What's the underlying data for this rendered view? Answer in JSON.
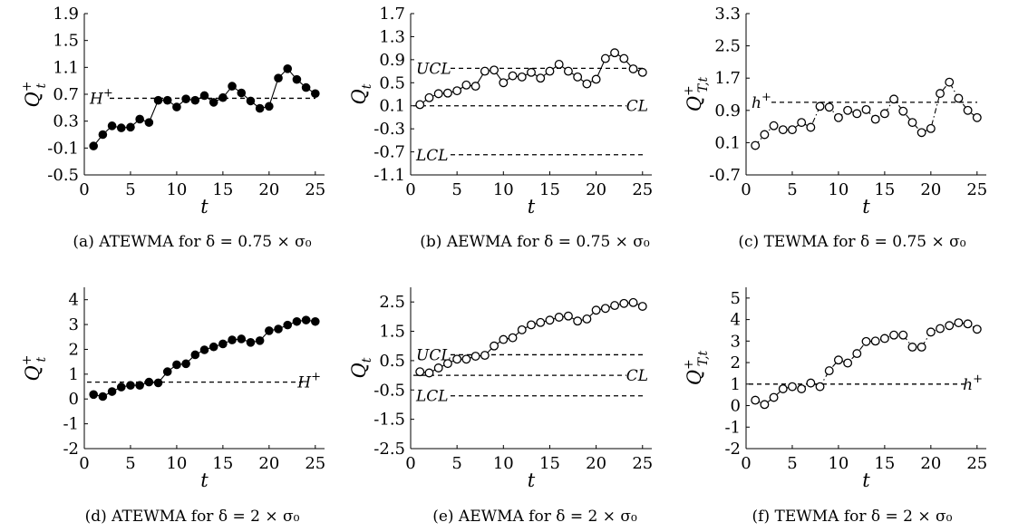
{
  "chart_data": [
    {
      "type": "line",
      "caption": "(a) ATEWMA for δ = 0.75 × σ₀",
      "xlabel": "t",
      "ylabel": "Q",
      "ylabel_sub": "t",
      "ylabel_sup": "+",
      "marker": "filled",
      "line_style": "solid",
      "xlim": [
        0,
        26
      ],
      "ylim": [
        -0.5,
        1.9
      ],
      "xticks": [
        0,
        5,
        10,
        15,
        20,
        25
      ],
      "yticks": [
        -0.5,
        -0.1,
        0.3,
        0.7,
        1.1,
        1.5,
        1.9
      ],
      "yticklabels": [
        "-0.5",
        "-0.1",
        "0.3",
        "0.7",
        "1.1",
        "1.5",
        "1.9"
      ],
      "x": [
        1,
        2,
        3,
        4,
        5,
        6,
        7,
        8,
        9,
        10,
        11,
        12,
        13,
        14,
        15,
        16,
        17,
        18,
        19,
        20,
        21,
        22,
        23,
        24,
        25
      ],
      "values": [
        -0.07,
        0.1,
        0.23,
        0.2,
        0.21,
        0.33,
        0.28,
        0.61,
        0.61,
        0.51,
        0.63,
        0.61,
        0.68,
        0.58,
        0.65,
        0.82,
        0.72,
        0.6,
        0.49,
        0.52,
        0.94,
        1.08,
        0.92,
        0.8,
        0.71
      ],
      "reference_lines": [
        {
          "label_base": "H",
          "label_sup": "+",
          "value": 0.64,
          "label_side": "left"
        }
      ]
    },
    {
      "type": "line",
      "caption": "(b) AEWMA for δ = 0.75 × σ₀",
      "xlabel": "t",
      "ylabel": "Q",
      "ylabel_sub": "t",
      "ylabel_sup": "",
      "marker": "open",
      "line_style": "solid",
      "xlim": [
        0,
        26
      ],
      "ylim": [
        -1.1,
        1.7
      ],
      "xticks": [
        0,
        5,
        10,
        15,
        20,
        25
      ],
      "yticks": [
        -1.1,
        -0.7,
        -0.3,
        0.1,
        0.5,
        0.9,
        1.3,
        1.7
      ],
      "yticklabels": [
        "-1.1",
        "-0.7",
        "-0.3",
        "0.1",
        "0.5",
        "0.9",
        "1.3",
        "1.7"
      ],
      "x": [
        1,
        2,
        3,
        4,
        5,
        6,
        7,
        8,
        9,
        10,
        11,
        12,
        13,
        14,
        15,
        16,
        17,
        18,
        19,
        20,
        21,
        22,
        23,
        24,
        25
      ],
      "values": [
        0.12,
        0.24,
        0.31,
        0.32,
        0.36,
        0.46,
        0.44,
        0.7,
        0.72,
        0.5,
        0.62,
        0.6,
        0.68,
        0.58,
        0.7,
        0.82,
        0.7,
        0.6,
        0.48,
        0.56,
        0.92,
        1.02,
        0.92,
        0.74,
        0.68
      ],
      "reference_lines": [
        {
          "label_base": "UCL",
          "label_sup": "",
          "value": 0.75,
          "label_side": "left"
        },
        {
          "label_base": "CL",
          "label_sup": "",
          "value": 0.1,
          "label_side": "right"
        },
        {
          "label_base": "LCL",
          "label_sup": "",
          "value": -0.75,
          "label_side": "left"
        }
      ]
    },
    {
      "type": "line",
      "caption": "(c) TEWMA for δ = 0.75 × σ₀",
      "xlabel": "t",
      "ylabel": "Q",
      "ylabel_sub": "T,t",
      "ylabel_sup": "+",
      "marker": "open",
      "line_style": "dashdot",
      "xlim": [
        0,
        26
      ],
      "ylim": [
        -0.7,
        3.3
      ],
      "xticks": [
        0,
        5,
        10,
        15,
        20,
        25
      ],
      "yticks": [
        -0.7,
        0.1,
        0.9,
        1.7,
        2.5,
        3.3
      ],
      "yticklabels": [
        "-0.7",
        "0.1",
        "0.9",
        "1.7",
        "2.5",
        "3.3"
      ],
      "x": [
        1,
        2,
        3,
        4,
        5,
        6,
        7,
        8,
        9,
        10,
        11,
        12,
        13,
        14,
        15,
        16,
        17,
        18,
        19,
        20,
        21,
        22,
        23,
        24,
        25
      ],
      "values": [
        0.03,
        0.3,
        0.52,
        0.42,
        0.42,
        0.6,
        0.48,
        1.0,
        0.98,
        0.72,
        0.9,
        0.82,
        0.92,
        0.68,
        0.82,
        1.18,
        0.88,
        0.6,
        0.35,
        0.45,
        1.32,
        1.6,
        1.2,
        0.9,
        0.72
      ],
      "reference_lines": [
        {
          "label_base": "h",
          "label_sup": "+",
          "value": 1.1,
          "label_side": "left"
        }
      ]
    },
    {
      "type": "line",
      "caption": "(d) ATEWMA for δ = 2 × σ₀",
      "xlabel": "t",
      "ylabel": "Q",
      "ylabel_sub": "t",
      "ylabel_sup": "+",
      "marker": "filled",
      "line_style": "solid",
      "xlim": [
        0,
        26
      ],
      "ylim": [
        -2,
        4.5
      ],
      "xticks": [
        0,
        5,
        10,
        15,
        20,
        25
      ],
      "yticks": [
        -2,
        -1,
        0,
        1,
        2,
        3,
        4
      ],
      "yticklabels": [
        "-2",
        "-1",
        "0",
        "1",
        "2",
        "3",
        "4"
      ],
      "x": [
        1,
        2,
        3,
        4,
        5,
        6,
        7,
        8,
        9,
        10,
        11,
        12,
        13,
        14,
        15,
        16,
        17,
        18,
        19,
        20,
        21,
        22,
        23,
        24,
        25
      ],
      "values": [
        0.18,
        0.1,
        0.3,
        0.48,
        0.55,
        0.55,
        0.68,
        0.65,
        1.1,
        1.38,
        1.42,
        1.78,
        1.98,
        2.1,
        2.22,
        2.38,
        2.42,
        2.28,
        2.35,
        2.75,
        2.82,
        2.98,
        3.12,
        3.18,
        3.12
      ],
      "reference_lines": [
        {
          "label_base": "H",
          "label_sup": "+",
          "value": 0.68,
          "label_side": "right"
        }
      ]
    },
    {
      "type": "line",
      "caption": "(e) AEWMA for δ = 2 × σ₀",
      "xlabel": "t",
      "ylabel": "Q",
      "ylabel_sub": "t",
      "ylabel_sup": "",
      "marker": "open",
      "line_style": "solid",
      "xlim": [
        0,
        26
      ],
      "ylim": [
        -2.5,
        3
      ],
      "xticks": [
        0,
        5,
        10,
        15,
        20,
        25
      ],
      "yticks": [
        -2.5,
        -1.5,
        -0.5,
        0.5,
        1.5,
        2.5
      ],
      "yticklabels": [
        "-2.5",
        "-1.5",
        "-0.5",
        "0.5",
        "1.5",
        "2.5"
      ],
      "x": [
        1,
        2,
        3,
        4,
        5,
        6,
        7,
        8,
        9,
        10,
        11,
        12,
        13,
        14,
        15,
        16,
        17,
        18,
        19,
        20,
        21,
        22,
        23,
        24,
        25
      ],
      "values": [
        0.12,
        0.08,
        0.25,
        0.4,
        0.55,
        0.55,
        0.65,
        0.68,
        1.0,
        1.22,
        1.28,
        1.55,
        1.72,
        1.8,
        1.88,
        1.98,
        2.02,
        1.85,
        1.92,
        2.22,
        2.28,
        2.38,
        2.45,
        2.48,
        2.35
      ],
      "reference_lines": [
        {
          "label_base": "UCL",
          "label_sup": "",
          "value": 0.7,
          "label_side": "left"
        },
        {
          "label_base": "CL",
          "label_sup": "",
          "value": 0.0,
          "label_side": "right"
        },
        {
          "label_base": "LCL",
          "label_sup": "",
          "value": -0.7,
          "label_side": "left"
        }
      ]
    },
    {
      "type": "line",
      "caption": "(f) TEWMA for δ = 2 × σ₀",
      "xlabel": "t",
      "ylabel": "Q",
      "ylabel_sub": "T,t",
      "ylabel_sup": "+",
      "marker": "open",
      "line_style": "dashdot",
      "xlim": [
        0,
        26
      ],
      "ylim": [
        -2,
        5.5
      ],
      "xticks": [
        0,
        5,
        10,
        15,
        20,
        25
      ],
      "yticks": [
        -2,
        -1,
        0,
        1,
        2,
        3,
        4,
        5
      ],
      "yticklabels": [
        "-2",
        "-1",
        "0",
        "1",
        "2",
        "3",
        "4",
        "5"
      ],
      "x": [
        1,
        2,
        3,
        4,
        5,
        6,
        7,
        8,
        9,
        10,
        11,
        12,
        13,
        14,
        15,
        16,
        17,
        18,
        19,
        20,
        21,
        22,
        23,
        24,
        25
      ],
      "values": [
        0.25,
        0.05,
        0.38,
        0.78,
        0.88,
        0.78,
        1.05,
        0.88,
        1.62,
        2.12,
        1.98,
        2.42,
        2.98,
        3.0,
        3.12,
        3.28,
        3.28,
        2.72,
        2.72,
        3.42,
        3.58,
        3.72,
        3.85,
        3.8,
        3.55
      ],
      "reference_lines": [
        {
          "label_base": "h",
          "label_sup": "+",
          "value": 1.0,
          "label_side": "right"
        }
      ]
    }
  ]
}
